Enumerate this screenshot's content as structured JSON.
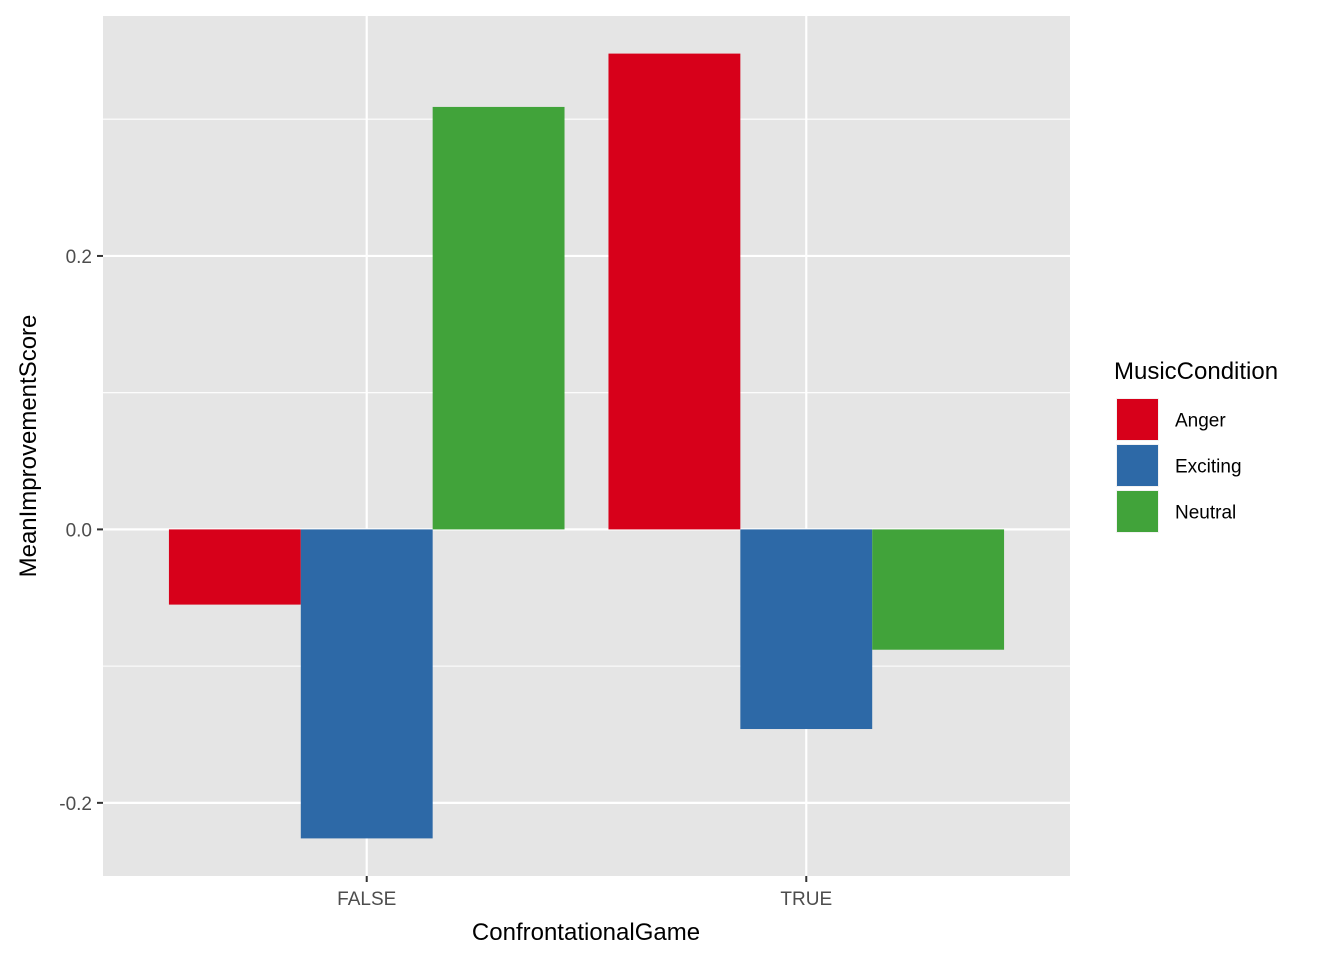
{
  "chart_data": {
    "type": "bar",
    "categories": [
      "FALSE",
      "TRUE"
    ],
    "series": [
      {
        "name": "Anger",
        "values": [
          -0.055,
          0.348
        ],
        "color": "#d7001a"
      },
      {
        "name": "Exciting",
        "values": [
          -0.226,
          -0.146
        ],
        "color": "#2d69a7"
      },
      {
        "name": "Neutral",
        "values": [
          0.309,
          -0.088
        ],
        "color": "#41a33a"
      }
    ],
    "xlabel": "ConfrontationalGame",
    "ylabel": "MeanImprovementScore",
    "legend_title": "MusicCondition",
    "ylim": [
      -0.2535,
      0.3755
    ],
    "yticks": [
      {
        "value": -0.2,
        "label": "-0.2"
      },
      {
        "value": 0.0,
        "label": "0.0"
      },
      {
        "value": 0.2,
        "label": "0.2"
      }
    ],
    "y_minor_ticks": [
      -0.1,
      0.1,
      0.3
    ],
    "grid": true,
    "legend_position": "right",
    "panel_background": "#e5e5e5",
    "grid_color": "#ffffff"
  }
}
